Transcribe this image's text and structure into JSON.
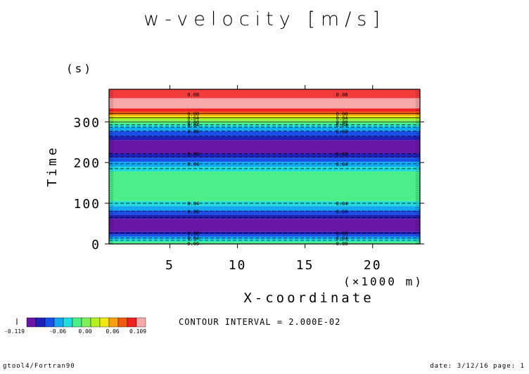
{
  "chart_data": {
    "type": "heatmap",
    "title": "w-velocity [m/s]",
    "xlabel": "X-coordinate",
    "xunit": "(×1000 m)",
    "ylabel": "Time",
    "yunit": "(s)",
    "xlim": [
      0.5,
      23.5
    ],
    "ylim": [
      0,
      380
    ],
    "x_ticks": [
      5,
      10,
      15,
      20
    ],
    "y_ticks": [
      0,
      100,
      200,
      300
    ],
    "bands": [
      {
        "y0": 0,
        "y1": 6,
        "color": "#4cee8a"
      },
      {
        "y0": 6,
        "y1": 12,
        "color": "#22dcdc"
      },
      {
        "y0": 12,
        "y1": 18,
        "color": "#15a8f0"
      },
      {
        "y0": 18,
        "y1": 24,
        "color": "#1a50e8"
      },
      {
        "y0": 24,
        "y1": 30,
        "color": "#2020b8"
      },
      {
        "y0": 30,
        "y1": 62,
        "color": "#6a17a8"
      },
      {
        "y0": 62,
        "y1": 72,
        "color": "#2020b8"
      },
      {
        "y0": 72,
        "y1": 82,
        "color": "#1a50e8"
      },
      {
        "y0": 82,
        "y1": 93,
        "color": "#15a8f0"
      },
      {
        "y0": 93,
        "y1": 105,
        "color": "#22dcdc"
      },
      {
        "y0": 105,
        "y1": 178,
        "color": "#4cee8a"
      },
      {
        "y0": 178,
        "y1": 190,
        "color": "#22dcdc"
      },
      {
        "y0": 190,
        "y1": 202,
        "color": "#15a8f0"
      },
      {
        "y0": 202,
        "y1": 212,
        "color": "#1a50e8"
      },
      {
        "y0": 212,
        "y1": 222,
        "color": "#2020b8"
      },
      {
        "y0": 222,
        "y1": 255,
        "color": "#6a17a8"
      },
      {
        "y0": 255,
        "y1": 265,
        "color": "#2020b8"
      },
      {
        "y0": 265,
        "y1": 277,
        "color": "#1a50e8"
      },
      {
        "y0": 277,
        "y1": 287,
        "color": "#15a8f0"
      },
      {
        "y0": 287,
        "y1": 293,
        "color": "#22dcdc"
      },
      {
        "y0": 293,
        "y1": 299,
        "color": "#4cee8a"
      },
      {
        "y0": 299,
        "y1": 305,
        "color": "#7ef05a"
      },
      {
        "y0": 305,
        "y1": 310,
        "color": "#b4f020"
      },
      {
        "y0": 310,
        "y1": 315,
        "color": "#f0e814"
      },
      {
        "y0": 315,
        "y1": 320,
        "color": "#f8a010"
      },
      {
        "y0": 320,
        "y1": 325,
        "color": "#f05a10"
      },
      {
        "y0": 325,
        "y1": 333,
        "color": "#f02020"
      },
      {
        "y0": 333,
        "y1": 358,
        "color": "#f8a8a8"
      },
      {
        "y0": 358,
        "y1": 380,
        "color": "#f23c3c"
      }
    ],
    "contours": [
      {
        "y": 9,
        "dashed": true
      },
      {
        "y": 15,
        "dashed": true,
        "label": "0.04"
      },
      {
        "y": 27,
        "dashed": true,
        "label": "0.08"
      },
      {
        "y": 65,
        "dashed": true
      },
      {
        "y": 80,
        "dashed": true,
        "label": "0.08"
      },
      {
        "y": 100,
        "dashed": true,
        "label": "0.04"
      },
      {
        "y": 185,
        "dashed": true
      },
      {
        "y": 197,
        "dashed": true,
        "label": "0.04"
      },
      {
        "y": 213,
        "dashed": true
      },
      {
        "y": 222,
        "dashed": true,
        "label": "0.08"
      },
      {
        "y": 265,
        "dashed": true
      },
      {
        "y": 277,
        "dashed": true,
        "label": "0.08"
      },
      {
        "y": 287,
        "dashed": true
      },
      {
        "y": 293,
        "dashed": true,
        "label": "0.04"
      },
      {
        "y": 300,
        "dashed": false,
        "label": "0.00"
      },
      {
        "y": 310,
        "dashed": false,
        "label": "0.04"
      },
      {
        "y": 320,
        "dashed": false,
        "label": "0.08"
      }
    ],
    "label_x": [
      6,
      17
    ],
    "bottom_labels": [
      "0.00",
      "0.04",
      "0.08"
    ],
    "top_label": "0.08",
    "colorbar": {
      "colors": [
        "#6a17a8",
        "#2020b8",
        "#1a50e8",
        "#15a8f0",
        "#22dcdc",
        "#4cee8a",
        "#7ef05a",
        "#b4f020",
        "#f0e814",
        "#f8a010",
        "#f05a10",
        "#f02020",
        "#f8a8a8"
      ],
      "tick_labels": [
        "-0.06",
        "0.00",
        "0.06",
        "0.109"
      ],
      "min_label": "-0.119"
    }
  },
  "contour_interval": "CONTOUR INTERVAL = 2.000E-02",
  "footer": {
    "left": "gtool4/Fortran90",
    "right": "date: 3/12/16 page: 1"
  }
}
